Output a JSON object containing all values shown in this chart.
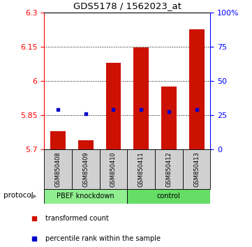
{
  "title": "GDS5178 / 1562023_at",
  "samples": [
    "GSM850408",
    "GSM850409",
    "GSM850410",
    "GSM850411",
    "GSM850412",
    "GSM850413"
  ],
  "red_values": [
    5.78,
    5.74,
    6.08,
    6.145,
    5.975,
    6.225
  ],
  "blue_values": [
    5.875,
    5.855,
    5.875,
    5.875,
    5.865,
    5.875
  ],
  "ylim_left": [
    5.7,
    6.3
  ],
  "ylim_right": [
    0,
    100
  ],
  "yticks_left": [
    5.7,
    5.85,
    6.0,
    6.15,
    6.3
  ],
  "yticks_right": [
    0,
    25,
    50,
    75,
    100
  ],
  "ytick_labels_left": [
    "5.7",
    "5.85",
    "6",
    "6.15",
    "6.3"
  ],
  "ytick_labels_right": [
    "0",
    "25",
    "50",
    "75",
    "100%"
  ],
  "bar_bottom": 5.7,
  "bar_width": 0.55,
  "group_split": 3,
  "knockdown_color": "#90ee90",
  "control_color": "#66dd66",
  "sample_box_color": "#d0d0d0",
  "bar_color": "#cc1100",
  "dot_color": "#0000cc",
  "legend_red": "transformed count",
  "legend_blue": "percentile rank within the sample",
  "protocol_label": "protocol"
}
